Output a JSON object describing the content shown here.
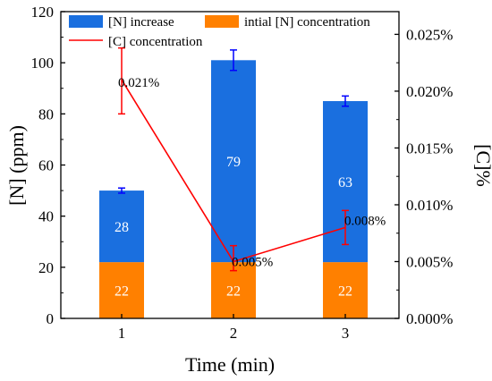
{
  "chart_data": {
    "type": "bar",
    "categories": [
      "1",
      "2",
      "3"
    ],
    "xlabel": "Time (min)",
    "ylabel_left": "[N] (ppm)",
    "ylabel_right": "[C]%",
    "ylim_left": [
      0,
      120
    ],
    "yticks_left": [
      "0",
      "20",
      "40",
      "60",
      "80",
      "100",
      "120"
    ],
    "ylim_right": [
      0,
      0.027
    ],
    "yticks_right": [
      "0.000%",
      "0.005%",
      "0.010%",
      "0.015%",
      "0.020%",
      "0.025%"
    ],
    "ytick_values_right": [
      0,
      0.005,
      0.01,
      0.015,
      0.02,
      0.025
    ],
    "series": [
      {
        "name": "intial [N] concentration",
        "type": "stacked-bar",
        "values": [
          22,
          22,
          22
        ],
        "labels": [
          "22",
          "22",
          "22"
        ],
        "color": "#ff8000"
      },
      {
        "name": "[N] increase",
        "type": "stacked-bar",
        "values": [
          28,
          79,
          63
        ],
        "labels": [
          "28",
          "79",
          "63"
        ],
        "color": "#1a6fdf",
        "error": [
          1,
          4,
          2
        ]
      },
      {
        "name": "[C] concentration",
        "type": "line",
        "axis": "right",
        "values": [
          0.021,
          0.005,
          0.008
        ],
        "labels": [
          "0.021%",
          "0.005%",
          "0.008%"
        ],
        "color": "#ff0000",
        "error_low": [
          0.003,
          0.0008,
          0.0015
        ],
        "error_high": [
          0.0028,
          0.0014,
          0.0015
        ]
      }
    ],
    "errorbar_color_bars": "#0000ff",
    "legend_placement": "top-left",
    "grid": false
  }
}
